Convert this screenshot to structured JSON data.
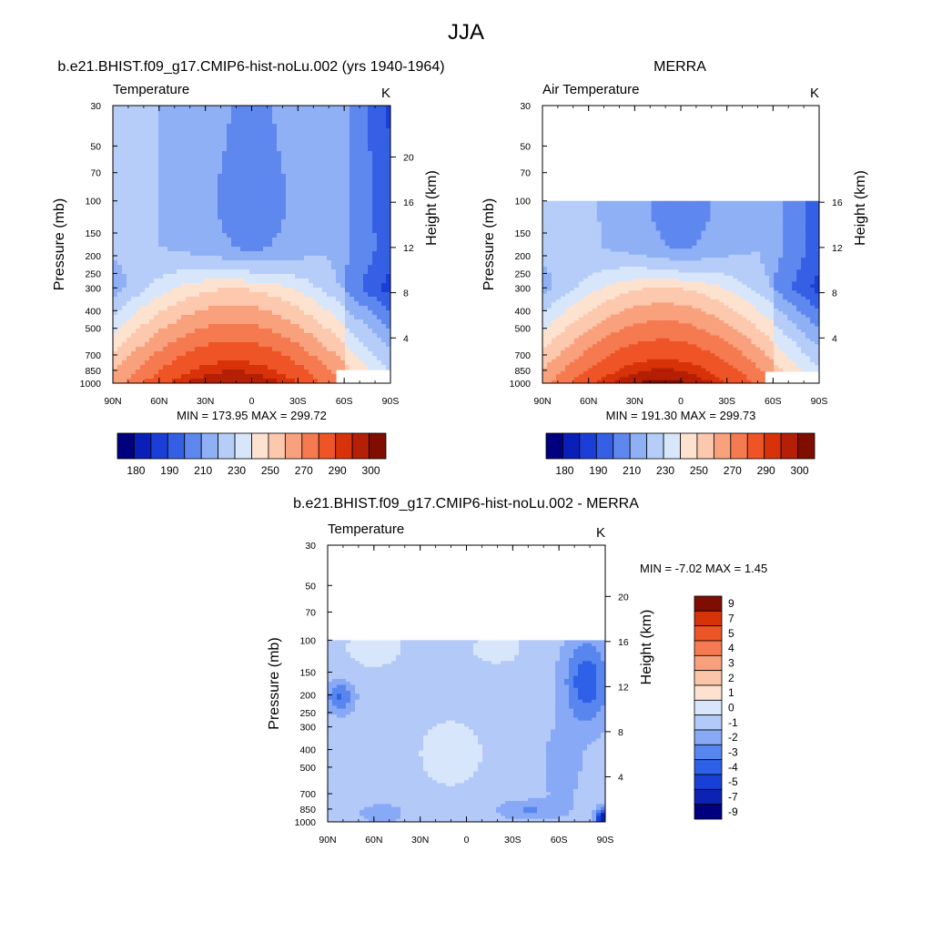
{
  "figure": {
    "title": "JJA"
  },
  "palettes": {
    "abs": [
      "#00007f",
      "#0a1fb8",
      "#1b3fd6",
      "#3560e6",
      "#5f88ef",
      "#8fb0f5",
      "#b5cdf8",
      "#d7e6fb",
      "#fde2d0",
      "#fcc8ae",
      "#f9a07d",
      "#f57a50",
      "#ee5426",
      "#d73209",
      "#b41f05",
      "#7f0d00"
    ],
    "diff": [
      "#00007f",
      "#0b22b3",
      "#1840d7",
      "#2e60e8",
      "#5886ef",
      "#88a9f5",
      "#b3c9f8",
      "#d8e6fb",
      "#fde3cf",
      "#fbc6a7",
      "#f8a07c",
      "#f57a52",
      "#ee5526",
      "#d63308",
      "#7f0d00"
    ]
  },
  "chart_data": [
    {
      "type": "heatmap",
      "title": "b.e21.BHIST.f09_g17.CMIP6-hist-noLu.002 (yrs 1940-1964)",
      "left_label": "Temperature",
      "right_label": "K",
      "ylabel": "Pressure (mb)",
      "y2label": "Height (km)",
      "x_ticks": [
        "90N",
        "60N",
        "30N",
        "0",
        "30S",
        "60S",
        "90S"
      ],
      "x_range": [
        90,
        -90
      ],
      "y_ticks": [
        30,
        50,
        70,
        100,
        150,
        200,
        250,
        300,
        400,
        500,
        700,
        850,
        1000
      ],
      "y_range": [
        30,
        1000
      ],
      "height_ticks": [
        20,
        16,
        12,
        8,
        4
      ],
      "stats": "MIN = 173.95  MAX = 299.72",
      "min": 173.95,
      "max": 299.72,
      "data_top_mb": 30,
      "colorbar": {
        "orientation": "horizontal",
        "ticks": [
          "180",
          "190",
          "210",
          "230",
          "250",
          "270",
          "290",
          "300"
        ]
      }
    },
    {
      "type": "heatmap",
      "title": "MERRA",
      "left_label": "Air Temperature",
      "right_label": "K",
      "ylabel": "Pressure (mb)",
      "y2label": "Height (km)",
      "x_ticks": [
        "90N",
        "60N",
        "30N",
        "0",
        "30S",
        "60S",
        "90S"
      ],
      "x_range": [
        90,
        -90
      ],
      "y_ticks": [
        30,
        50,
        70,
        100,
        150,
        200,
        250,
        300,
        400,
        500,
        700,
        850,
        1000
      ],
      "y_range": [
        30,
        1000
      ],
      "height_ticks": [
        16,
        12,
        8,
        4
      ],
      "stats": "MIN = 191.30  MAX = 299.73",
      "min": 191.3,
      "max": 299.73,
      "data_top_mb": 100,
      "colorbar": {
        "orientation": "horizontal",
        "ticks": [
          "180",
          "190",
          "210",
          "230",
          "250",
          "270",
          "290",
          "300"
        ]
      }
    },
    {
      "type": "heatmap",
      "title": "b.e21.BHIST.f09_g17.CMIP6-hist-noLu.002 - MERRA",
      "left_label": "Temperature",
      "right_label": "K",
      "ylabel": "Pressure (mb)",
      "y2label": "Height (km)",
      "x_ticks": [
        "90N",
        "60N",
        "30N",
        "0",
        "30S",
        "60S",
        "90S"
      ],
      "x_range": [
        90,
        -90
      ],
      "y_ticks": [
        30,
        50,
        70,
        100,
        150,
        200,
        250,
        300,
        400,
        500,
        700,
        850,
        1000
      ],
      "y_range": [
        30,
        1000
      ],
      "height_ticks": [
        20,
        16,
        12,
        8,
        4
      ],
      "stats": "MIN =  -7.02  MAX =   1.45",
      "min": -7.02,
      "max": 1.45,
      "data_top_mb": 100,
      "colorbar": {
        "orientation": "vertical",
        "ticks": [
          "9",
          "7",
          "5",
          "4",
          "3",
          "2",
          "1",
          "0",
          "-1",
          "-2",
          "-3",
          "-4",
          "-5",
          "-7",
          "-9"
        ]
      }
    }
  ]
}
